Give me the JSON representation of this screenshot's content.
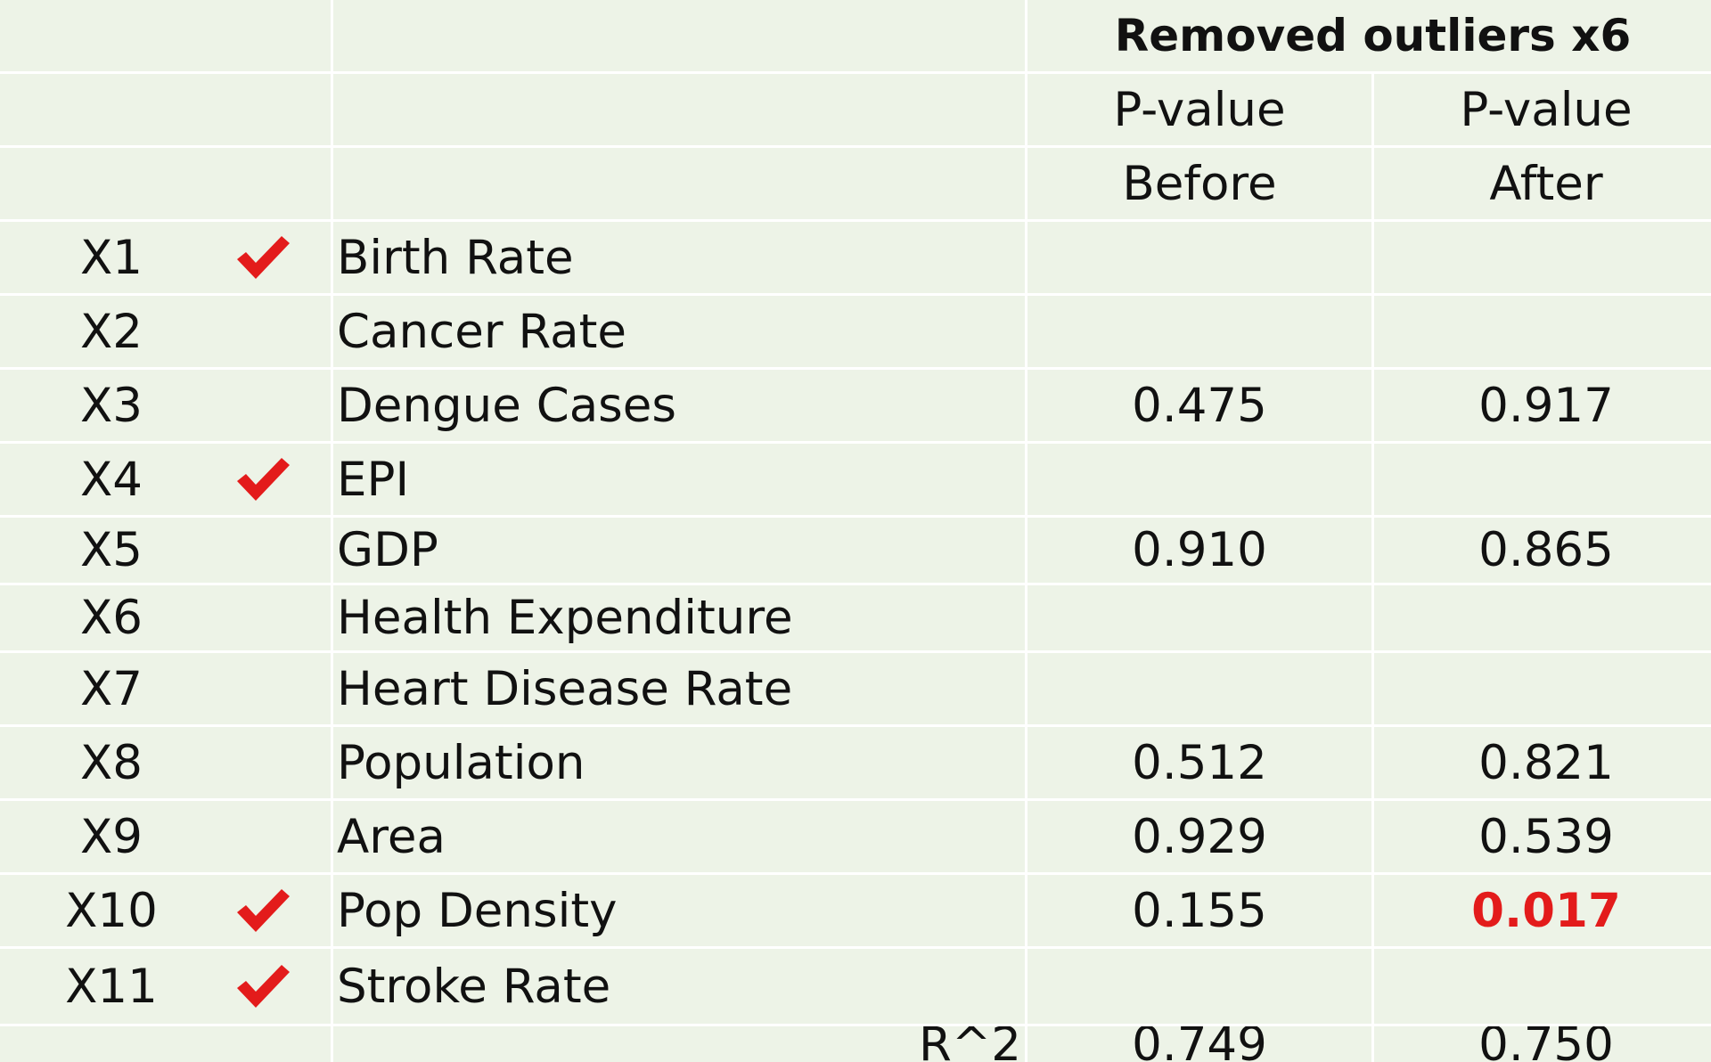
{
  "header": {
    "group_title": "Removed outliers x6",
    "col_before": {
      "line1": "P-value",
      "line2": "Before"
    },
    "col_after": {
      "line1": "P-value",
      "line2": "After"
    }
  },
  "rows": [
    {
      "id": "X1",
      "checked": true,
      "name": "Birth Rate",
      "before": "",
      "after": "",
      "significant": false
    },
    {
      "id": "X2",
      "checked": false,
      "name": "Cancer Rate",
      "before": "",
      "after": "",
      "significant": false
    },
    {
      "id": "X3",
      "checked": false,
      "name": "Dengue Cases",
      "before": "0.475",
      "after": "0.917",
      "significant": false
    },
    {
      "id": "X4",
      "checked": true,
      "name": "EPI",
      "before": "",
      "after": "",
      "significant": false
    },
    {
      "id": "X5",
      "checked": false,
      "name": "GDP",
      "before": "0.910",
      "after": "0.865",
      "significant": false
    },
    {
      "id": "X6",
      "checked": false,
      "name": "Health Expenditure",
      "before": "",
      "after": "",
      "significant": false
    },
    {
      "id": "X7",
      "checked": false,
      "name": "Heart Disease Rate",
      "before": "",
      "after": "",
      "significant": false
    },
    {
      "id": "X8",
      "checked": false,
      "name": "Population",
      "before": "0.512",
      "after": "0.821",
      "significant": false
    },
    {
      "id": "X9",
      "checked": false,
      "name": "Area",
      "before": "0.929",
      "after": "0.539",
      "significant": false
    },
    {
      "id": "X10",
      "checked": true,
      "name": "Pop Density",
      "before": "0.155",
      "after": "0.017",
      "significant": true
    },
    {
      "id": "X11",
      "checked": true,
      "name": "Stroke Rate",
      "before": "",
      "after": "",
      "significant": false
    }
  ],
  "r_squared": {
    "label": "R^2",
    "before": "0.749",
    "after": "0.750"
  },
  "colors": {
    "cell_background": "#edf3e7",
    "grid_lines": "#ffffff",
    "text": "#111111",
    "checkmark": "#e31b1b",
    "significant_value": "#e31b1b"
  }
}
